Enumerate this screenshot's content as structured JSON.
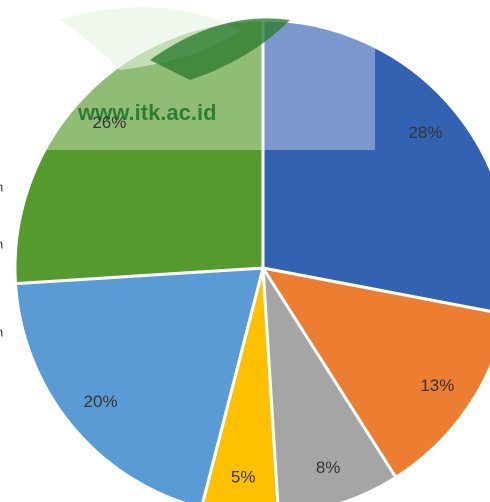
{
  "chart_data": {
    "type": "pie",
    "values": [
      28,
      13,
      8,
      5,
      20,
      26
    ],
    "value_labels": [
      "28%",
      "13%",
      "8%",
      "5%",
      "20%",
      "26%"
    ],
    "colors": [
      "#3462b3",
      "#ed7d31",
      "#a5a5a5",
      "#ffc000",
      "#5b9bd5",
      "#559a2c"
    ],
    "watermark": "www.itk.ac.id",
    "side_labels": [
      "n",
      "n",
      "n"
    ]
  }
}
